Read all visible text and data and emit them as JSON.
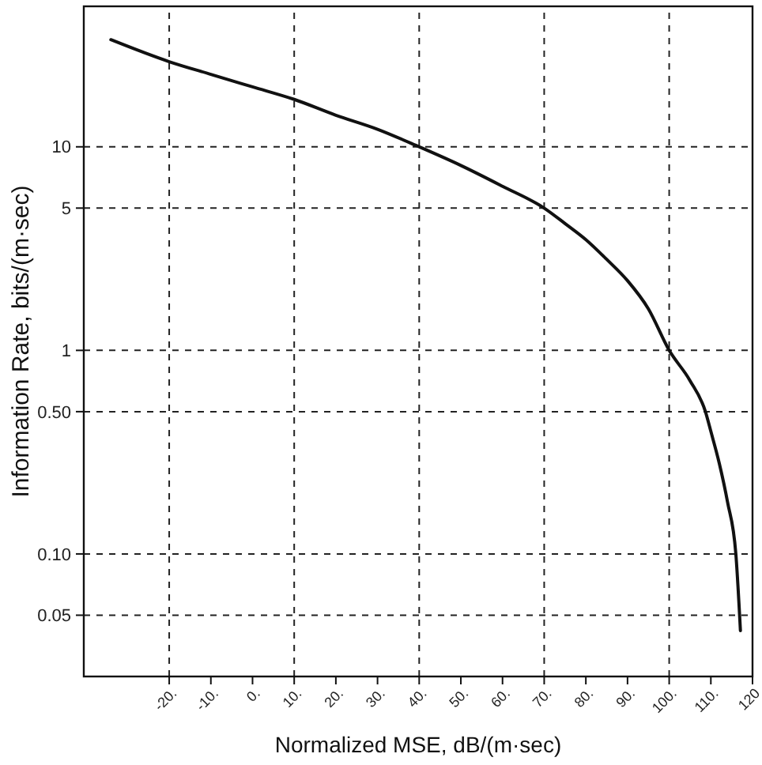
{
  "chart_data": {
    "type": "line",
    "xlabel": "Normalized MSE, dB/(m·sec)",
    "ylabel": "Information Rate, bits/(m·sec)",
    "log": "y",
    "grid": false,
    "marker": "none",
    "line_style": "solid",
    "x": [
      -34,
      -20,
      -10,
      0,
      10,
      20,
      30,
      40,
      50,
      60,
      70,
      75,
      80,
      85,
      90,
      95,
      100,
      105,
      108.7,
      110,
      112,
      114,
      116,
      117.1
    ],
    "series": [
      {
        "color": "#111111",
        "values": [
          33.6,
          26.2,
          22.7,
          19.7,
          17.1,
          14.3,
          12.2,
          10,
          8.1,
          6.4,
          5,
          4.2,
          3.5,
          2.8,
          2.2,
          1.6,
          1,
          0.71,
          0.5,
          0.4,
          0.28,
          0.18,
          0.1,
          0.042
        ]
      }
    ],
    "xlim": [
      -40.5,
      120
    ],
    "ylim": [
      0.025,
      49
    ],
    "xticks": [
      {
        "value": -20,
        "label": "-20."
      },
      {
        "value": -10,
        "label": "-10."
      },
      {
        "value": 0,
        "label": "0."
      },
      {
        "value": 10,
        "label": "10."
      },
      {
        "value": 20,
        "label": "20."
      },
      {
        "value": 30,
        "label": "30."
      },
      {
        "value": 40,
        "label": "40."
      },
      {
        "value": 50,
        "label": "50."
      },
      {
        "value": 60,
        "label": "60."
      },
      {
        "value": 70,
        "label": "70."
      },
      {
        "value": 80,
        "label": "80."
      },
      {
        "value": 90,
        "label": "90."
      },
      {
        "value": 100,
        "label": "100."
      },
      {
        "value": 110,
        "label": "110."
      },
      120
    ],
    "yticks": [
      {
        "value": 0.05,
        "label": "0.05"
      },
      {
        "value": 0.1,
        "label": "0.10"
      },
      {
        "value": 0.5,
        "label": "0.50"
      },
      1,
      5,
      10
    ],
    "ref_lines": [
      {
        "axis": "x",
        "value": -20,
        "line_style": "dashed"
      },
      {
        "axis": "x",
        "value": 10,
        "line_style": "dashed"
      },
      {
        "axis": "x",
        "value": 40,
        "line_style": "dashed"
      },
      {
        "axis": "x",
        "value": 70,
        "line_style": "dashed"
      },
      {
        "axis": "x",
        "value": 100,
        "line_style": "dashed"
      },
      {
        "axis": "y",
        "value": 0.05,
        "line_style": "dashed"
      },
      {
        "axis": "y",
        "value": 0.1,
        "line_style": "dashed"
      },
      {
        "axis": "y",
        "value": 0.5,
        "line_style": "dashed"
      },
      {
        "axis": "y",
        "value": 1,
        "line_style": "dashed"
      },
      {
        "axis": "y",
        "value": 5,
        "line_style": "dashed"
      },
      {
        "axis": "y",
        "value": 10,
        "line_style": "dashed"
      }
    ]
  }
}
